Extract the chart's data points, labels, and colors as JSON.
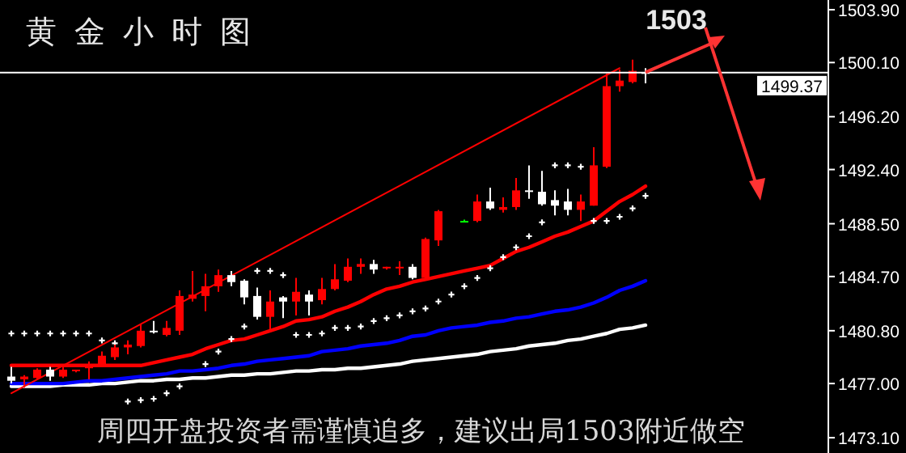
{
  "chart_data": {
    "type": "candlestick",
    "title": "黄金小时图",
    "categories": [
      null,
      null,
      null,
      null,
      null,
      null,
      null,
      null,
      null,
      null,
      null,
      null,
      null,
      null,
      null,
      null,
      null,
      null,
      null,
      null,
      null,
      null,
      null,
      null,
      null,
      null,
      null,
      null,
      null,
      null,
      null,
      null,
      null,
      null,
      null,
      null,
      null,
      null,
      null,
      null,
      null,
      null,
      null,
      null,
      null,
      null,
      null,
      null,
      null,
      null
    ],
    "ohlc": [
      [
        1477.5,
        1478.2,
        1477.0,
        1477.2
      ],
      [
        1477.3,
        1477.6,
        1476.7,
        1477.5
      ],
      [
        1477.4,
        1478.1,
        1477.3,
        1478.0
      ],
      [
        1478.0,
        1478.2,
        1477.2,
        1477.5
      ],
      [
        1477.5,
        1478.2,
        1477.4,
        1478.0
      ],
      [
        1477.9,
        1478.0,
        1477.8,
        1478.0
      ],
      [
        1478.1,
        1478.6,
        1477.3,
        1478.3
      ],
      [
        1478.3,
        1479.3,
        1478.2,
        1479.0
      ],
      [
        1478.9,
        1479.8,
        1478.7,
        1479.6
      ],
      [
        1479.6,
        1480.1,
        1479.1,
        1479.8
      ],
      [
        1479.7,
        1481.3,
        1479.6,
        1480.8
      ],
      [
        1480.8,
        1481.5,
        1480.6,
        1480.7
      ],
      [
        1480.5,
        1481.5,
        1480.4,
        1481.0
      ],
      [
        1480.8,
        1483.7,
        1480.5,
        1483.3
      ],
      [
        1483.1,
        1485.1,
        1482.9,
        1483.4
      ],
      [
        1483.3,
        1484.9,
        1482.2,
        1484.0
      ],
      [
        1484.0,
        1485.2,
        1483.6,
        1484.8
      ],
      [
        1484.8,
        1485.1,
        1484.0,
        1484.3
      ],
      [
        1484.4,
        1484.5,
        1482.7,
        1483.2
      ],
      [
        1483.3,
        1483.9,
        1481.6,
        1481.8
      ],
      [
        1481.8,
        1483.7,
        1480.8,
        1482.9
      ],
      [
        1483.2,
        1483.3,
        1481.7,
        1482.9
      ],
      [
        1482.9,
        1484.6,
        1481.9,
        1483.6
      ],
      [
        1483.4,
        1483.7,
        1481.9,
        1482.9
      ],
      [
        1483.0,
        1484.6,
        1482.7,
        1483.8
      ],
      [
        1483.8,
        1485.6,
        1483.7,
        1484.5
      ],
      [
        1484.4,
        1486.0,
        1484.3,
        1485.4
      ],
      [
        1485.4,
        1486.0,
        1484.9,
        1485.6
      ],
      [
        1485.6,
        1485.9,
        1484.9,
        1485.2
      ],
      [
        1485.3,
        1485.4,
        1485.2,
        1485.4
      ],
      [
        1485.3,
        1485.8,
        1484.8,
        1485.4
      ],
      [
        1485.4,
        1485.6,
        1484.5,
        1484.6
      ],
      [
        1484.6,
        1487.5,
        1484.5,
        1487.4
      ],
      [
        1487.3,
        1489.5,
        1486.9,
        1489.4
      ],
      null,
      [
        1488.7,
        1488.8,
        1488.6,
        1488.7
      ],
      [
        1488.7,
        1490.6,
        1488.6,
        1490.1
      ],
      [
        1490.1,
        1491.1,
        1489.5,
        1489.6
      ],
      [
        1489.5,
        1490.4,
        1489.3,
        1489.7
      ],
      [
        1489.7,
        1491.8,
        1489.5,
        1490.9
      ],
      [
        1490.9,
        1492.7,
        1490.3,
        1490.8
      ],
      [
        1490.8,
        1492.3,
        1489.8,
        1489.9
      ],
      [
        1490.2,
        1490.9,
        1489.1,
        1489.8
      ],
      [
        1490.1,
        1491.0,
        1489.1,
        1489.5
      ],
      [
        1489.5,
        1490.6,
        1488.7,
        1490.1
      ],
      [
        1489.8,
        1494.0,
        1489.8,
        1492.7
      ],
      [
        1492.6,
        1499.3,
        1492.5,
        1498.4
      ],
      [
        1498.4,
        1499.6,
        1498.0,
        1498.8
      ],
      [
        1498.7,
        1500.3,
        1498.6,
        1499.5
      ],
      [
        1499.4,
        1499.7,
        1498.6,
        1499.4
      ]
    ],
    "colors": [
      "#ffffff",
      "#ff0000",
      "#ff0000",
      "#ffffff",
      "#ff0000",
      "#ff0000",
      "#ff0000",
      "#ff0000",
      "#ff0000",
      "#ff0000",
      "#ff0000",
      "#ffffff",
      "#ff0000",
      "#ff0000",
      "#ff0000",
      "#ff0000",
      "#ff0000",
      "#ffffff",
      "#ffffff",
      "#ffffff",
      "#ff0000",
      "#ffffff",
      "#ff0000",
      "#ffffff",
      "#ff0000",
      "#ff0000",
      "#ff0000",
      "#ff0000",
      "#ffffff",
      "#ff0000",
      "#ff0000",
      "#ffffff",
      "#ff0000",
      "#ff0000",
      null,
      "#00ff00",
      "#ff0000",
      "#ffffff",
      "#ff0000",
      "#ff0000",
      "#ffffff",
      "#ffffff",
      "#ffffff",
      "#ffffff",
      "#ff0000",
      "#ff0000",
      "#ff0000",
      "#ff0000",
      "#ff0000",
      "#ffffff"
    ],
    "series": [
      {
        "type": "line",
        "color": "#ffffff",
        "values": [
          1476.8,
          1476.8,
          1476.8,
          1476.8,
          1476.9,
          1476.9,
          1476.9,
          1477.0,
          1477.0,
          1477.1,
          1477.2,
          1477.2,
          1477.3,
          1477.3,
          1477.4,
          1477.4,
          1477.5,
          1477.6,
          1477.6,
          1477.7,
          1477.7,
          1477.8,
          1477.9,
          1477.9,
          1478.0,
          1478.0,
          1478.1,
          1478.1,
          1478.2,
          1478.3,
          1478.4,
          1478.6,
          1478.7,
          1478.8,
          1478.9,
          1479.0,
          1479.1,
          1479.3,
          1479.4,
          1479.5,
          1479.7,
          1479.8,
          1479.9,
          1480.1,
          1480.2,
          1480.4,
          1480.6,
          1480.9,
          1481.0,
          1481.2
        ]
      },
      {
        "type": "line",
        "color": "#0000ff",
        "values": [
          1477.0,
          1477.0,
          1477.0,
          1477.0,
          1477.0,
          1477.1,
          1477.2,
          1477.2,
          1477.3,
          1477.4,
          1477.5,
          1477.6,
          1477.7,
          1477.9,
          1477.9,
          1478.0,
          1478.1,
          1478.3,
          1478.4,
          1478.6,
          1478.7,
          1478.8,
          1478.9,
          1479.0,
          1479.3,
          1479.4,
          1479.5,
          1479.7,
          1479.8,
          1479.9,
          1480.1,
          1480.4,
          1480.5,
          1480.8,
          1481.0,
          1481.1,
          1481.2,
          1481.4,
          1481.5,
          1481.7,
          1481.8,
          1482.0,
          1482.2,
          1482.3,
          1482.5,
          1482.8,
          1483.2,
          1483.7,
          1484.0,
          1484.4
        ]
      },
      {
        "type": "line",
        "color": "#ff0000",
        "values": [
          1478.3,
          1478.3,
          1478.3,
          1478.3,
          1478.3,
          1478.3,
          1478.3,
          1478.3,
          1478.3,
          1478.3,
          1478.3,
          1478.5,
          1478.7,
          1478.9,
          1479.1,
          1479.5,
          1479.8,
          1480.1,
          1480.2,
          1480.5,
          1480.8,
          1481.1,
          1481.5,
          1481.6,
          1481.8,
          1482.2,
          1482.5,
          1482.9,
          1483.4,
          1483.8,
          1484.0,
          1484.3,
          1484.5,
          1484.7,
          1484.9,
          1485.1,
          1485.3,
          1485.5,
          1486.0,
          1486.5,
          1486.8,
          1487.2,
          1487.6,
          1487.9,
          1488.3,
          1488.7,
          1489.4,
          1490.1,
          1490.6,
          1491.2
        ]
      },
      {
        "type": "scatter",
        "marker": "cross",
        "color": "#ffffff",
        "values": [
          1480.6,
          1480.6,
          1480.6,
          1480.6,
          1480.6,
          1480.6,
          1480.6,
          1480.1,
          1479.9,
          1475.7,
          1475.8,
          1475.9,
          1476.3,
          1476.8,
          null,
          1478.4,
          1479.3,
          1480.2,
          1481.1,
          1485.1,
          1485.1,
          1484.8,
          1480.5,
          1480.5,
          1480.6,
          1481.0,
          1481.0,
          1481.1,
          1481.5,
          1481.7,
          1481.9,
          1482.2,
          1482.4,
          1482.9,
          1483.4,
          1484.0,
          1484.6,
          1485.3,
          1486.1,
          1486.8,
          1487.6,
          1488.6,
          1492.7,
          1492.7,
          1492.6,
          1488.7,
          1488.7,
          1489.0,
          1489.6,
          1490.5
        ]
      },
      {
        "type": "line",
        "color": "#ff0000",
        "values": [
          1476.3,
          null,
          null,
          null,
          null,
          null,
          null,
          null,
          null,
          null,
          null,
          null,
          null,
          null,
          null,
          null,
          null,
          null,
          null,
          null,
          null,
          null,
          null,
          null,
          null,
          null,
          null,
          null,
          null,
          null,
          null,
          null,
          null,
          null,
          null,
          null,
          null,
          null,
          null,
          null,
          null,
          null,
          null,
          null,
          null,
          null,
          null,
          1499.7,
          null,
          null
        ]
      }
    ],
    "ylim": [
      1472.0,
      1504.6
    ],
    "yticks": [
      {
        "value": 1473.1,
        "label": "1473.10"
      },
      {
        "value": 1477,
        "label": "1477.00"
      },
      {
        "value": 1480.8,
        "label": "1480.80"
      },
      {
        "value": 1484.7,
        "label": "1484.70"
      },
      {
        "value": 1488.5,
        "label": "1488.50"
      },
      {
        "value": 1492.4,
        "label": "1492.40"
      },
      {
        "value": 1496.2,
        "label": "1496.20"
      },
      {
        "value": 1500.1,
        "label": "1500.10"
      },
      {
        "value": 1503.9,
        "label": "1503.90"
      }
    ],
    "tick_labels": "y",
    "ref_lines": [
      {
        "axis": "y",
        "value": 1499.37,
        "label": "1499.37",
        "color": "#ffffff"
      }
    ],
    "annotations": [
      "1503",
      "周四开盘投资者需谨慎追多，建议出局1503附近做空"
    ]
  }
}
